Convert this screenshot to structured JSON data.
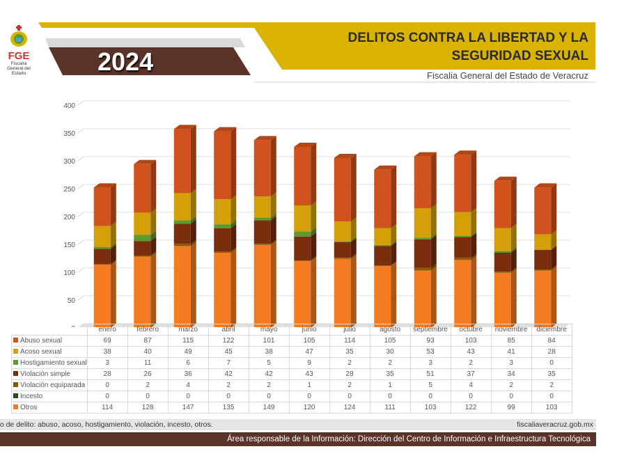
{
  "header": {
    "logo_text": "FGE",
    "logo_sub": "Fiscalía General del Estado",
    "year": "2024",
    "title": "DELITOS CONTRA LA LIBERTAD Y LA SEGURIDAD SEXUAL",
    "subtitle": "Fiscalia General del Estado de Veracruz"
  },
  "footer": {
    "note": "po de delito: abuso, acoso, hostigamiento, violación, incesto, otros.",
    "website": "fiscaliaveracruz.gob.mx",
    "responsible": "Área responsable de la Información: Dirección del Centro de Información e Infraestructura Tecnológica"
  },
  "colors": {
    "yellow": "#d9b300",
    "brown": "#5c3328"
  },
  "chart_data": {
    "type": "bar",
    "stacked": true,
    "title": "DELITOS CONTRA LA LIBERTAD Y LA SEGURIDAD SEXUAL",
    "ylim": [
      0,
      400
    ],
    "yticks": [
      0,
      50,
      100,
      150,
      200,
      250,
      300,
      350,
      400
    ],
    "grid": true,
    "legend": "table-below",
    "categories": [
      "enero",
      "febrero",
      "marzo",
      "abril",
      "mayo",
      "junio",
      "julio",
      "agosto",
      "septiembre",
      "octubre",
      "noviembre",
      "diciembre"
    ],
    "series": [
      {
        "name": "Abuso sexual",
        "color": "#d0521c",
        "values": [
          69,
          87,
          115,
          122,
          101,
          105,
          114,
          105,
          93,
          103,
          85,
          84
        ]
      },
      {
        "name": "Acoso sexual",
        "color": "#d4a00a",
        "values": [
          38,
          40,
          49,
          45,
          38,
          47,
          35,
          30,
          53,
          43,
          41,
          28
        ]
      },
      {
        "name": "Hostigamiento sexual",
        "color": "#5a9a2e",
        "values": [
          3,
          11,
          6,
          7,
          5,
          9,
          2,
          2,
          3,
          2,
          3,
          0
        ]
      },
      {
        "name": "Violación simple",
        "color": "#7a2e0e",
        "values": [
          28,
          26,
          36,
          42,
          42,
          43,
          28,
          35,
          51,
          37,
          34,
          35
        ]
      },
      {
        "name": "Violación equiparada",
        "color": "#8a5a00",
        "values": [
          0,
          2,
          4,
          2,
          2,
          1,
          2,
          1,
          5,
          4,
          2,
          2
        ]
      },
      {
        "name": "Incesto",
        "color": "#2e4a1a",
        "values": [
          0,
          0,
          0,
          0,
          0,
          0,
          0,
          0,
          0,
          0,
          0,
          0
        ]
      },
      {
        "name": "Otros",
        "color": "#f47b20",
        "values": [
          114,
          128,
          147,
          135,
          149,
          120,
          124,
          111,
          103,
          122,
          99,
          103
        ]
      }
    ]
  }
}
